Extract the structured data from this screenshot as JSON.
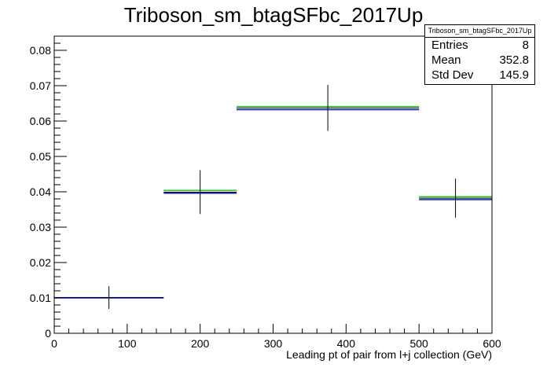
{
  "chart_data": {
    "type": "histogram",
    "title": "Triboson_sm_btagSFbc_2017Up",
    "xlabel": "Leading pt of pair from l+j collection (GeV)",
    "ylabel": "",
    "xlim": [
      0,
      600
    ],
    "ylim": [
      0,
      0.084
    ],
    "x_ticks": [
      "0",
      "100",
      "200",
      "300",
      "400",
      "500",
      "600"
    ],
    "y_ticks": [
      "0",
      "0.01",
      "0.02",
      "0.03",
      "0.04",
      "0.05",
      "0.06",
      "0.07",
      "0.08"
    ],
    "grid": false,
    "stats_box": {
      "name": "Triboson_sm_btagSFbc_2017Up",
      "rows": [
        {
          "label": "Entries",
          "value": "8"
        },
        {
          "label": "Mean",
          "value": "352.8"
        },
        {
          "label": "Std Dev",
          "value": "145.9"
        }
      ]
    },
    "bins": [
      {
        "x_low": 0,
        "x_high": 150,
        "x_center": 75,
        "value": 0.0101,
        "error": 0.0032
      },
      {
        "x_low": 150,
        "x_high": 250,
        "x_center": 200,
        "value": 0.0399,
        "error": 0.0062
      },
      {
        "x_low": 250,
        "x_high": 500,
        "x_center": 375,
        "value": 0.0637,
        "error": 0.0065
      },
      {
        "x_low": 500,
        "x_high": 600,
        "x_center": 550,
        "value": 0.0382,
        "error": 0.0055
      }
    ],
    "variations": [
      {
        "color": "#00cc00",
        "values": [
          0.0101,
          0.0404,
          0.0641,
          0.0386
        ]
      },
      {
        "color": "#0000cc",
        "values": [
          0.01,
          0.0396,
          0.0632,
          0.0378
        ]
      }
    ],
    "colors": {
      "nominal": "#000000",
      "up": "#00cc00",
      "down": "#0000cc"
    }
  }
}
